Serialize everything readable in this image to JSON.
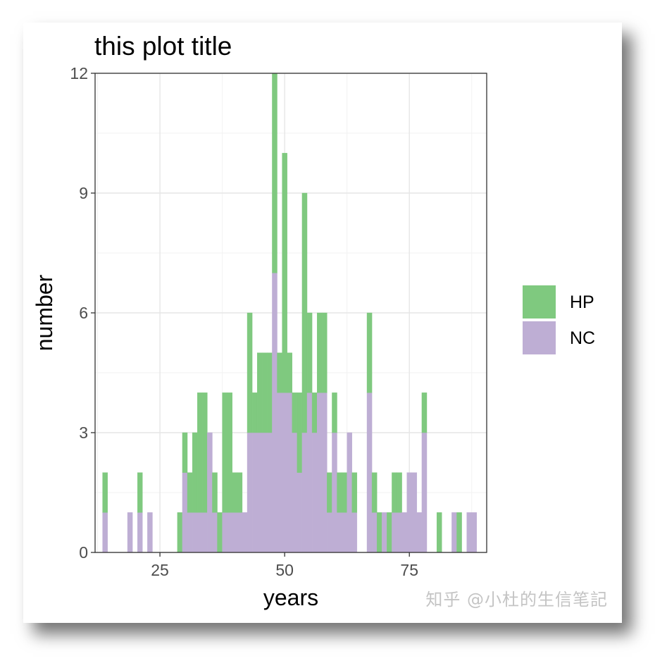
{
  "watermark": "知乎 @小杜的生信笔記",
  "chart_data": {
    "type": "bar",
    "stacked": true,
    "title": "this plot title",
    "xlabel": "years",
    "ylabel": "number",
    "xlim": [
      12,
      90.5
    ],
    "ylim": [
      0,
      12
    ],
    "xticks": [
      25,
      50,
      75
    ],
    "yticks": [
      0,
      3,
      6,
      9,
      12
    ],
    "grid": true,
    "legend_position": "right",
    "bin_width": 1,
    "x": [
      14,
      19,
      21,
      23,
      29,
      30,
      31,
      32,
      33,
      34,
      35,
      36,
      37,
      38,
      39,
      40,
      41,
      42,
      43,
      44,
      45,
      46,
      47,
      48,
      49,
      50,
      51,
      52,
      53,
      54,
      55,
      56,
      57,
      58,
      59,
      60,
      61,
      62,
      63,
      64,
      67,
      68,
      69,
      70,
      71,
      72,
      73,
      74,
      75,
      76,
      77,
      78,
      81,
      84,
      85,
      87,
      88
    ],
    "series": [
      {
        "name": "NC",
        "color": "#BEAED4",
        "values": [
          1,
          1,
          1,
          1,
          0,
          2,
          1,
          1,
          1,
          1,
          3,
          1,
          0,
          1,
          1,
          1,
          1,
          1,
          3,
          3,
          3,
          3,
          3,
          7,
          4,
          4,
          4,
          3,
          2,
          3,
          4,
          3,
          4,
          4,
          1,
          3,
          1,
          1,
          3,
          1,
          4,
          1,
          0,
          1,
          0,
          1,
          1,
          1,
          2,
          2,
          1,
          3,
          0,
          1,
          0,
          1,
          1
        ]
      },
      {
        "name": "HP",
        "color": "#7FC97F",
        "values": [
          1,
          0,
          1,
          0,
          1,
          1,
          1,
          2,
          3,
          3,
          0,
          1,
          1,
          3,
          3,
          1,
          1,
          0,
          3,
          1,
          2,
          2,
          2,
          5,
          1,
          6,
          1,
          1,
          2,
          6,
          2,
          1,
          2,
          2,
          1,
          1,
          1,
          1,
          0,
          1,
          2,
          1,
          1,
          0,
          1,
          1,
          1,
          0,
          0,
          0,
          0,
          1,
          1,
          0,
          1,
          0,
          0
        ]
      }
    ]
  }
}
